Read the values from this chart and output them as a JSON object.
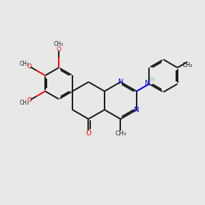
{
  "background_color": "#e8e8e8",
  "bond_color": "#1a1a1a",
  "n_color": "#0000ff",
  "o_color": "#ff0000",
  "h_color": "#7fbfbf",
  "lw": 1.5,
  "figsize": [
    3.0,
    3.0
  ],
  "dpi": 100,
  "xlim": [
    0,
    10
  ],
  "ylim": [
    0,
    10
  ]
}
